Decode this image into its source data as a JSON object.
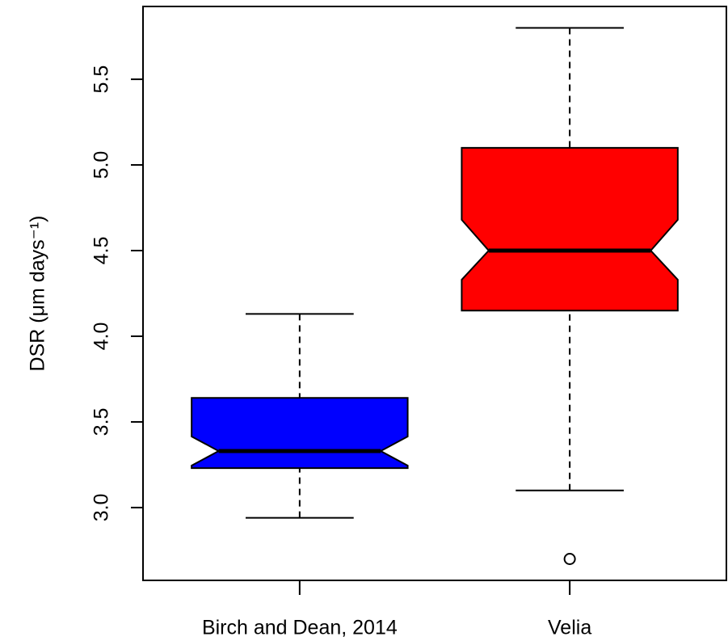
{
  "chart_data": {
    "type": "boxplot",
    "y_label": "DSR (μm days⁻¹)",
    "categories": [
      "Birch and Dean, 2014",
      "Velia"
    ],
    "boxes": [
      {
        "low": 2.94,
        "q1": 3.23,
        "median": 3.33,
        "q3": 3.64,
        "high": 4.13,
        "notch_low": 3.245,
        "notch_high": 3.415,
        "outliers": [],
        "color": "#0000ff"
      },
      {
        "low": 3.1,
        "q1": 4.15,
        "median": 4.5,
        "q3": 5.1,
        "high": 5.8,
        "notch_low": 4.33,
        "notch_high": 4.68,
        "outliers": [
          2.7
        ],
        "color": "#ff0000"
      }
    ],
    "ylim": [
      2.575,
      5.925
    ],
    "yticks": [
      {
        "value": 3,
        "label": "3.0"
      },
      3.5,
      {
        "value": 4,
        "label": "4.0"
      },
      4.5,
      {
        "value": 5,
        "label": "5.0"
      },
      5.5
    ]
  }
}
